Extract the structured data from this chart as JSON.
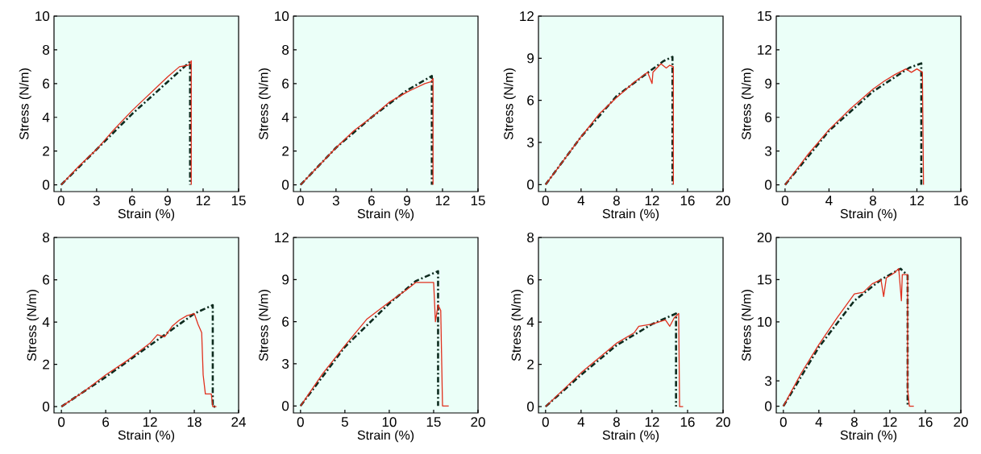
{
  "chart_data": [
    {
      "type": "line",
      "xlabel": "Strain (%)",
      "ylabel": "Stress (N/m)",
      "xlim": [
        -0.6,
        15
      ],
      "ylim": [
        -0.4,
        10
      ],
      "xticks": [
        0,
        3,
        6,
        9,
        12,
        15
      ],
      "yticks": [
        0,
        2,
        4,
        6,
        8,
        10
      ],
      "series": [
        {
          "color": "#0d2b1e",
          "line_style": "dashdot",
          "x": [
            0,
            3,
            6,
            9,
            10.9,
            10.9
          ],
          "values": [
            0,
            2.1,
            4.2,
            6.1,
            7.3,
            0
          ]
        },
        {
          "color": "#e0301e",
          "line_style": "solid",
          "x": [
            0,
            1.5,
            3,
            4.5,
            6,
            7.5,
            9,
            10,
            10.8,
            11,
            11
          ],
          "values": [
            0,
            1.1,
            2.1,
            3.3,
            4.4,
            5.4,
            6.4,
            7.0,
            7.1,
            7.35,
            0
          ]
        }
      ]
    },
    {
      "type": "line",
      "xlabel": "Strain (%)",
      "ylabel": "Stress (N/m)",
      "xlim": [
        -0.6,
        15
      ],
      "ylim": [
        -0.4,
        10
      ],
      "xticks": [
        0,
        3,
        6,
        9,
        12,
        15
      ],
      "yticks": [
        0,
        2,
        4,
        6,
        8,
        10
      ],
      "series": [
        {
          "color": "#0d2b1e",
          "line_style": "dashdot",
          "x": [
            0,
            3,
            6,
            9,
            11.1,
            11.1
          ],
          "values": [
            0,
            2.2,
            4.0,
            5.6,
            6.45,
            0
          ]
        },
        {
          "color": "#e0301e",
          "line_style": "solid",
          "x": [
            0,
            1.5,
            3,
            4.5,
            6,
            7.5,
            9,
            10.5,
            11,
            11.2,
            11.2
          ],
          "values": [
            0,
            1.1,
            2.2,
            3.2,
            4.0,
            4.9,
            5.5,
            6.0,
            6.1,
            6.3,
            0
          ]
        }
      ]
    },
    {
      "type": "line",
      "xlabel": "Strain (%)",
      "ylabel": "Stress (N/m)",
      "xlim": [
        -0.8,
        20
      ],
      "ylim": [
        -0.5,
        12
      ],
      "xticks": [
        0,
        4,
        8,
        12,
        16,
        20
      ],
      "yticks": [
        0,
        3,
        6,
        9,
        12
      ],
      "series": [
        {
          "color": "#0d2b1e",
          "line_style": "dashdot",
          "x": [
            0,
            4,
            8,
            12,
            13.3,
            14.3,
            14.3
          ],
          "values": [
            0,
            3.4,
            6.3,
            8.2,
            8.8,
            9.1,
            0
          ]
        },
        {
          "color": "#e0301e",
          "line_style": "solid",
          "x": [
            0,
            2,
            4,
            6,
            8,
            10,
            11.5,
            12,
            12.1,
            13,
            13.6,
            14.0,
            14.4,
            14.4
          ],
          "values": [
            0,
            1.7,
            3.4,
            5.0,
            6.2,
            7.3,
            8.0,
            7.2,
            8.0,
            8.6,
            8.3,
            8.5,
            8.4,
            0
          ]
        }
      ]
    },
    {
      "type": "line",
      "xlabel": "Strain (%)",
      "ylabel": "Stress (N/m)",
      "xlim": [
        -0.8,
        16
      ],
      "ylim": [
        -0.6,
        15
      ],
      "xticks": [
        0,
        4,
        8,
        12,
        16
      ],
      "yticks": [
        0,
        3,
        6,
        9,
        12,
        15
      ],
      "series": [
        {
          "color": "#0d2b1e",
          "line_style": "dashdot",
          "x": [
            0,
            4,
            8,
            11.3,
            12.4,
            12.4
          ],
          "values": [
            0,
            4.8,
            8.3,
            10.4,
            10.8,
            0
          ]
        },
        {
          "color": "#e0301e",
          "line_style": "solid",
          "x": [
            0,
            2,
            4,
            6,
            8,
            9,
            10,
            11,
            11.5,
            12,
            12.5,
            12.6
          ],
          "values": [
            0,
            2.6,
            4.9,
            6.8,
            8.5,
            9.2,
            9.8,
            10.3,
            10.0,
            10.3,
            10.0,
            0
          ]
        }
      ]
    },
    {
      "type": "line",
      "xlabel": "Strain (%)",
      "ylabel": "Stress (N/m)",
      "xlim": [
        -1,
        24
      ],
      "ylim": [
        -0.3,
        8
      ],
      "xticks": [
        0,
        6,
        12,
        18,
        24
      ],
      "yticks": [
        0,
        2,
        4,
        6,
        8
      ],
      "series": [
        {
          "color": "#0d2b1e",
          "line_style": "dashdot",
          "x": [
            0,
            6,
            12,
            18,
            20.5,
            20.5,
            21
          ],
          "values": [
            0,
            1.4,
            2.9,
            4.4,
            4.8,
            0,
            0
          ]
        },
        {
          "color": "#e0301e",
          "line_style": "solid",
          "x": [
            0,
            3,
            6,
            9,
            12,
            13,
            14,
            15,
            16,
            17,
            18,
            18.5,
            19,
            19.2,
            19.5,
            20.3,
            20.5,
            21
          ],
          "values": [
            0,
            0.7,
            1.5,
            2.2,
            3.0,
            3.4,
            3.3,
            3.8,
            4.1,
            4.3,
            4.4,
            3.9,
            3.5,
            1.5,
            0.6,
            0.6,
            0,
            0
          ]
        }
      ]
    },
    {
      "type": "line",
      "xlabel": "Strain (%)",
      "ylabel": "Stress (N/m)",
      "xlim": [
        -0.8,
        20
      ],
      "ylim": [
        -0.5,
        12
      ],
      "xticks": [
        0,
        5,
        10,
        15,
        20
      ],
      "yticks": [
        0,
        3,
        6,
        9,
        12
      ],
      "series": [
        {
          "color": "#0d2b1e",
          "line_style": "dashdot",
          "x": [
            0,
            5,
            10,
            13,
            15.5,
            15.5
          ],
          "values": [
            0,
            4.2,
            7.3,
            8.9,
            9.6,
            0
          ]
        },
        {
          "color": "#e0301e",
          "line_style": "solid",
          "x": [
            0,
            2.5,
            5,
            7.5,
            10,
            12,
            13,
            15,
            15.2,
            15.5,
            15.8,
            16,
            16.7
          ],
          "values": [
            0,
            2.3,
            4.3,
            6.2,
            7.4,
            8.3,
            8.8,
            8.8,
            6.0,
            7.2,
            6.8,
            0,
            0
          ]
        }
      ]
    },
    {
      "type": "line",
      "xlabel": "Strain (%)",
      "ylabel": "Stress (N/m)",
      "xlim": [
        -0.8,
        20
      ],
      "ylim": [
        -0.3,
        8
      ],
      "xticks": [
        0,
        4,
        8,
        12,
        16,
        20
      ],
      "yticks": [
        0,
        2,
        4,
        6,
        8
      ],
      "series": [
        {
          "color": "#0d2b1e",
          "line_style": "dashdot",
          "x": [
            0,
            4,
            8,
            12,
            14.7,
            14.7
          ],
          "values": [
            0,
            1.5,
            2.9,
            3.9,
            4.4,
            0
          ]
        },
        {
          "color": "#e0301e",
          "line_style": "solid",
          "x": [
            0,
            2,
            4,
            6,
            8,
            10,
            10.5,
            12,
            13.5,
            14,
            14.5,
            15,
            15.1,
            15.5
          ],
          "values": [
            0,
            0.8,
            1.6,
            2.3,
            3.0,
            3.5,
            3.8,
            3.9,
            4.1,
            3.8,
            4.2,
            4.4,
            0,
            0
          ]
        }
      ]
    },
    {
      "type": "line",
      "xlabel": "Strain (%)",
      "ylabel": "Stress (N/m)",
      "xlim": [
        -0.8,
        20
      ],
      "ylim": [
        -0.8,
        20
      ],
      "xticks": [
        0,
        4,
        8,
        12,
        16,
        20
      ],
      "yticks": [
        0,
        3,
        10,
        15,
        20
      ],
      "series": [
        {
          "color": "#0d2b1e",
          "line_style": "dashdot",
          "x": [
            0,
            4,
            8,
            11,
            13.2,
            14,
            14
          ],
          "values": [
            0,
            7.0,
            12.5,
            15.0,
            16.3,
            15.5,
            0
          ]
        },
        {
          "color": "#e0301e",
          "line_style": "solid",
          "x": [
            0,
            2,
            4,
            6,
            8,
            9,
            10,
            11,
            11.3,
            11.6,
            12.5,
            13,
            13.3,
            13.4,
            14,
            14,
            14.2,
            14.7
          ],
          "values": [
            0,
            3.9,
            7.3,
            10.4,
            13.3,
            13.5,
            14.5,
            15,
            13,
            15.2,
            15.8,
            16.3,
            12.5,
            15.6,
            15.6,
            2,
            0,
            0
          ]
        }
      ]
    }
  ]
}
